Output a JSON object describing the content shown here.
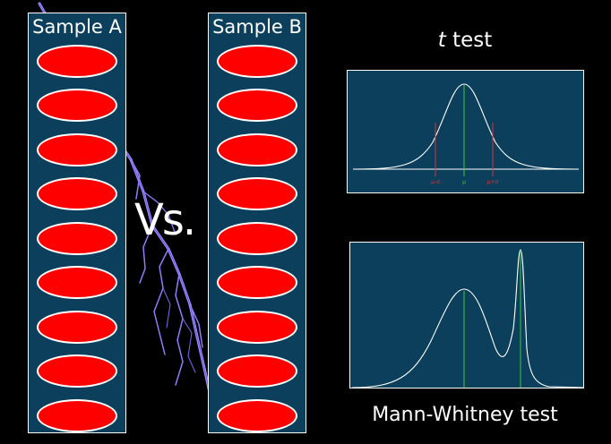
{
  "sample_a": {
    "title": "Sample A",
    "count": 9
  },
  "sample_b": {
    "title": "Sample B",
    "count": 9
  },
  "versus_label": "Vs.",
  "ttest": {
    "title_italic": "t",
    "title_rest": " test",
    "mean_label": "μ",
    "minus_sigma_label": "μ-σ",
    "plus_sigma_label": "μ+σ"
  },
  "mann_whitney": {
    "title": "Mann-Whitney test"
  },
  "colors": {
    "background": "#000000",
    "panel": "#0b3f5c",
    "oval": "#ff0000",
    "mean_line": "#3ec93e",
    "sigma_line": "#d8323c",
    "lightning": "#8f7cff"
  }
}
